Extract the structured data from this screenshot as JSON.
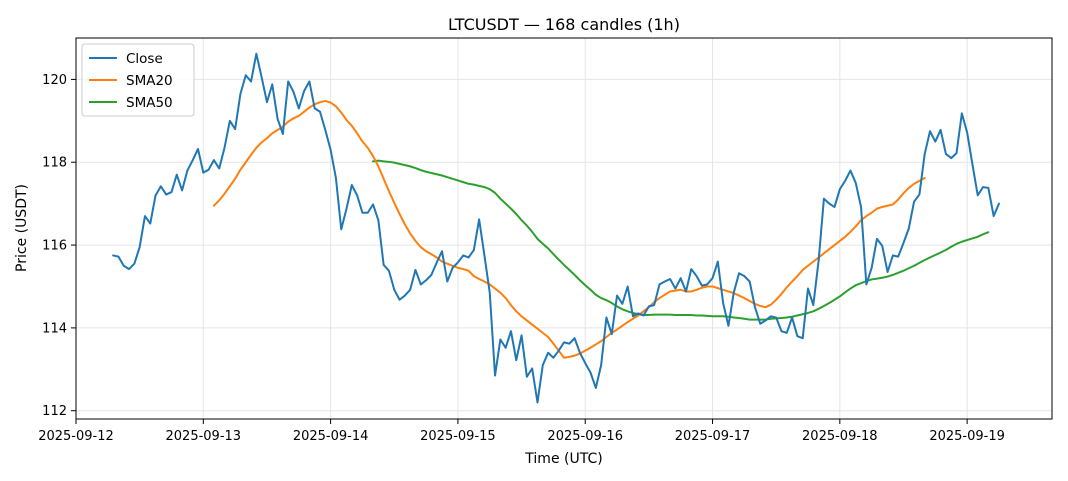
{
  "chart_data": {
    "type": "line",
    "title": "LTCUSDT — 168 candles (1h)",
    "xlabel": "Time (UTC)",
    "ylabel": "Price (USDT)",
    "x_start": "2025-09-12 07:00",
    "x_interval_hours": 1,
    "xlim": [
      "2025-09-12 00:00",
      "2025-09-19 16:00"
    ],
    "ylim": [
      111.8,
      121.0
    ],
    "x_ticks": [
      "2025-09-12",
      "2025-09-13",
      "2025-09-14",
      "2025-09-15",
      "2025-09-16",
      "2025-09-17",
      "2025-09-18",
      "2025-09-19"
    ],
    "y_ticks": [
      112,
      114,
      116,
      118,
      120
    ],
    "grid": true,
    "legend_position": "top-left",
    "colors": {
      "Close": "#1f77b4",
      "SMA20": "#ff7f0e",
      "SMA50": "#2ca02c"
    },
    "series": [
      {
        "name": "Close",
        "values": [
          115.75,
          115.72,
          115.5,
          115.42,
          115.55,
          115.95,
          116.7,
          116.52,
          117.2,
          117.42,
          117.22,
          117.28,
          117.7,
          117.32,
          117.8,
          118.05,
          118.32,
          117.75,
          117.82,
          118.05,
          117.85,
          118.35,
          119.0,
          118.8,
          119.65,
          120.1,
          119.95,
          120.62,
          120.05,
          119.45,
          119.88,
          119.05,
          118.68,
          119.95,
          119.7,
          119.3,
          119.72,
          119.95,
          119.3,
          119.22,
          118.78,
          118.3,
          117.62,
          116.38,
          116.88,
          117.45,
          117.2,
          116.78,
          116.78,
          116.98,
          116.6,
          115.52,
          115.38,
          114.92,
          114.68,
          114.78,
          114.92,
          115.4,
          115.05,
          115.15,
          115.28,
          115.58,
          115.85,
          115.12,
          115.45,
          115.58,
          115.75,
          115.7,
          115.88,
          116.62,
          115.75,
          114.85,
          112.85,
          113.72,
          113.52,
          113.92,
          113.22,
          113.82,
          112.82,
          113.02,
          112.2,
          113.1,
          113.4,
          113.28,
          113.45,
          113.65,
          113.62,
          113.75,
          113.4,
          113.15,
          112.92,
          112.55,
          113.1,
          114.25,
          113.85,
          114.78,
          114.58,
          115.0,
          114.28,
          114.35,
          114.3,
          114.52,
          114.55,
          115.05,
          115.12,
          115.18,
          114.95,
          115.2,
          114.88,
          115.42,
          115.25,
          115.02,
          115.05,
          115.2,
          115.6,
          114.6,
          114.05,
          114.85,
          115.32,
          115.25,
          115.12,
          114.5,
          114.1,
          114.18,
          114.28,
          114.25,
          113.92,
          113.88,
          114.25,
          113.8,
          113.75,
          114.95,
          114.55,
          115.62,
          117.12,
          117.0,
          116.92,
          117.35,
          117.55,
          117.8,
          117.5,
          116.92,
          115.05,
          115.45,
          116.15,
          115.98,
          115.35,
          115.75,
          115.72,
          116.05,
          116.4,
          117.05,
          117.22,
          118.2,
          118.75,
          118.5,
          118.78,
          118.2,
          118.1,
          118.22,
          119.18,
          118.72,
          117.95,
          117.2,
          117.4,
          117.38,
          116.7,
          117.0
        ]
      },
      {
        "name": "SMA20",
        "start_index": 19,
        "values": [
          116.95,
          117.08,
          117.24,
          117.42,
          117.6,
          117.82,
          118.0,
          118.18,
          118.35,
          118.48,
          118.58,
          118.7,
          118.78,
          118.86,
          118.98,
          119.06,
          119.12,
          119.22,
          119.32,
          119.4,
          119.45,
          119.48,
          119.44,
          119.35,
          119.2,
          119.02,
          118.88,
          118.7,
          118.5,
          118.35,
          118.15,
          117.9,
          117.6,
          117.3,
          117.02,
          116.75,
          116.5,
          116.28,
          116.1,
          115.95,
          115.85,
          115.78,
          115.7,
          115.6,
          115.55,
          115.5,
          115.45,
          115.42,
          115.38,
          115.25,
          115.18,
          115.12,
          115.05,
          114.95,
          114.85,
          114.72,
          114.55,
          114.4,
          114.28,
          114.18,
          114.08,
          113.98,
          113.88,
          113.78,
          113.62,
          113.45,
          113.28,
          113.3,
          113.33,
          113.38,
          113.45,
          113.52,
          113.6,
          113.68,
          113.78,
          113.88,
          113.96,
          114.05,
          114.14,
          114.22,
          114.3,
          114.4,
          114.5,
          114.62,
          114.72,
          114.8,
          114.88,
          114.9,
          114.92,
          114.88,
          114.88,
          114.92,
          114.97,
          115.0,
          115.0,
          114.96,
          114.92,
          114.88,
          114.84,
          114.78,
          114.72,
          114.65,
          114.58,
          114.53,
          114.5,
          114.56,
          114.68,
          114.82,
          114.98,
          115.12,
          115.25,
          115.4,
          115.5,
          115.6,
          115.7,
          115.8,
          115.9,
          116.0,
          116.1,
          116.2,
          116.32,
          116.45,
          116.6,
          116.7,
          116.78,
          116.88,
          116.92,
          116.95,
          116.98,
          117.1,
          117.25,
          117.38,
          117.48,
          117.55,
          117.62
        ]
      },
      {
        "name": "SMA50",
        "start_index": 49,
        "values": [
          118.02,
          118.04,
          118.02,
          118.01,
          117.99,
          117.96,
          117.93,
          117.9,
          117.86,
          117.81,
          117.77,
          117.74,
          117.71,
          117.68,
          117.64,
          117.6,
          117.56,
          117.52,
          117.48,
          117.46,
          117.43,
          117.4,
          117.35,
          117.26,
          117.12,
          117.0,
          116.88,
          116.75,
          116.6,
          116.47,
          116.32,
          116.15,
          116.03,
          115.92,
          115.78,
          115.65,
          115.52,
          115.4,
          115.28,
          115.15,
          115.03,
          114.92,
          114.8,
          114.72,
          114.67,
          114.6,
          114.52,
          114.45,
          114.4,
          114.36,
          114.33,
          114.31,
          114.31,
          114.32,
          114.32,
          114.32,
          114.32,
          114.31,
          114.31,
          114.31,
          114.31,
          114.3,
          114.3,
          114.29,
          114.28,
          114.28,
          114.28,
          114.27,
          114.25,
          114.24,
          114.22,
          114.2,
          114.2,
          114.2,
          114.2,
          114.22,
          114.23,
          114.24,
          114.25,
          114.27,
          114.3,
          114.33,
          114.36,
          114.4,
          114.46,
          114.53,
          114.6,
          114.68,
          114.76,
          114.86,
          114.95,
          115.03,
          115.08,
          115.13,
          115.17,
          115.19,
          115.21,
          115.24,
          115.28,
          115.33,
          115.38,
          115.44,
          115.5,
          115.57,
          115.64,
          115.7,
          115.76,
          115.82,
          115.88,
          115.96,
          116.03,
          116.08,
          116.12,
          116.16,
          116.2,
          116.26,
          116.31
        ]
      }
    ]
  }
}
